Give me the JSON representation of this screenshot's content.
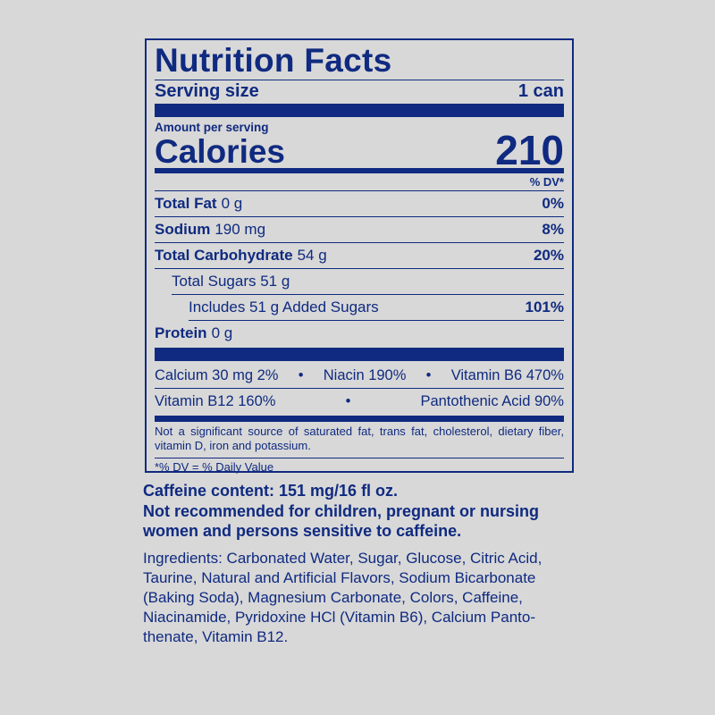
{
  "label": {
    "title": "Nutrition Facts",
    "serving_size_label": "Serving size",
    "serving_size_value": "1 can",
    "amount_per_serving": "Amount per serving",
    "calories_label": "Calories",
    "calories_value": "210",
    "dv_header": "% DV*",
    "nutrients": [
      {
        "name": "Total Fat",
        "amount": "0 g",
        "dv": "0%"
      },
      {
        "name": "Sodium",
        "amount": "190 mg",
        "dv": "8%"
      },
      {
        "name": "Total Carbohydrate",
        "amount": "54 g",
        "dv": "20%"
      },
      {
        "name": "Total Sugars 51 g",
        "amount": "",
        "dv": ""
      },
      {
        "name": "Includes 51 g Added Sugars",
        "amount": "",
        "dv": "101%"
      },
      {
        "name": "Protein",
        "amount": "0 g",
        "dv": ""
      }
    ],
    "vitamins_row1": [
      "Calcium 30 mg 2%",
      "•",
      "Niacin 190%",
      "•",
      "Vitamin B6 470%"
    ],
    "vitamins_row2": [
      "Vitamin B12 160%",
      "•",
      "Pantothenic Acid 90%"
    ],
    "not_significant": "Not a significant source of saturated fat, trans fat, cholesterol, dietary fiber, vitamin D, iron and potassium.",
    "footnote": "*% DV = % Daily Value"
  },
  "caffeine": "Caffeine content: 151 mg/16 fl oz.",
  "warning": "Not recommended for children, pregnant or nursing women and persons sensitive to caffeine.",
  "ingredients": "Ingredients: Carbonated Water, Sugar, Glucose, Citric Acid, Taurine, Natural and Artificial Flavors, Sodium Bicarbonate (Baking Soda), Magnesium Carbonate, Colors, Caffeine, Niacinamide, Pyridoxine HCl (Vitamin B6), Calcium Panto­thenate, Vitamin B12.",
  "colors": {
    "ink": "#0f2a80",
    "background": "#d8d8d8"
  }
}
